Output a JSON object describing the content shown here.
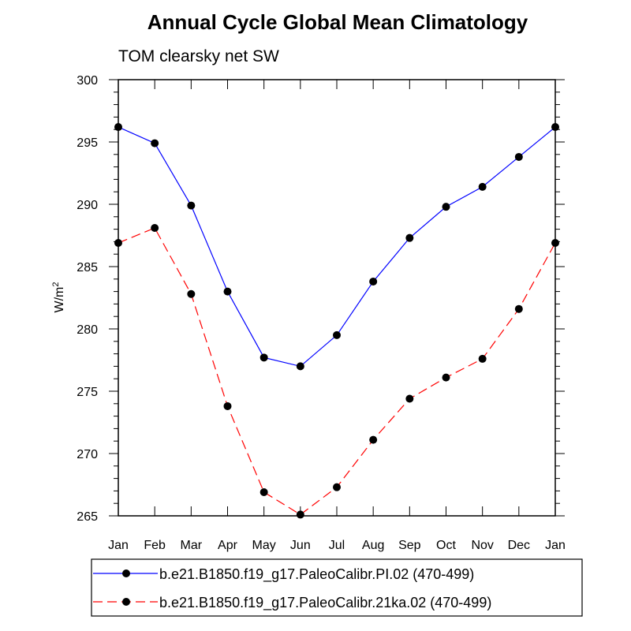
{
  "chart_data": {
    "type": "line",
    "title": "Annual Cycle Global Mean Climatology",
    "subtitle": "TOM clearsky net SW",
    "xlabel": "",
    "ylabel": {
      "base": "W/m",
      "superscript": "2"
    },
    "categories": [
      "Jan",
      "Feb",
      "Mar",
      "Apr",
      "May",
      "Jun",
      "Jul",
      "Aug",
      "Sep",
      "Oct",
      "Nov",
      "Dec",
      "Jan"
    ],
    "ylim": [
      265,
      300
    ],
    "yticks": [
      265,
      270,
      275,
      280,
      285,
      290,
      295,
      300
    ],
    "grid": false,
    "legend_position": "bottom",
    "series": [
      {
        "name": "b.e21.B1850.f19_g17.PaleoCalibr.PI.02 (470-499)",
        "color": "#0000ff",
        "dash": "solid",
        "marker": "circle",
        "values": [
          296.2,
          294.9,
          289.9,
          283.0,
          277.7,
          277.0,
          279.5,
          283.8,
          287.3,
          289.8,
          291.4,
          293.8,
          296.2
        ]
      },
      {
        "name": "b.e21.B1850.f19_g17.PaleoCalibr.21ka.02 (470-499)",
        "color": "#ff0000",
        "dash": "dashed",
        "marker": "circle",
        "values": [
          286.9,
          288.1,
          282.8,
          273.8,
          266.9,
          265.1,
          267.3,
          271.1,
          274.4,
          276.1,
          277.6,
          281.6,
          286.9
        ]
      }
    ]
  }
}
